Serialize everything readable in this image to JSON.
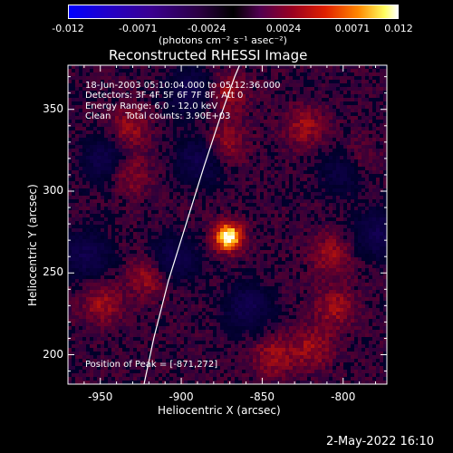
{
  "colorbar": {
    "ticks": [
      "-0.012",
      "-0.0071",
      "-0.0024",
      "0.0024",
      "0.0071",
      "0.012"
    ],
    "unit_label": "(photons cm⁻² s⁻¹ asec⁻²)"
  },
  "plot": {
    "title": "Reconstructed RHESSI Image",
    "xlabel": "Heliocentric X (arcsec)",
    "ylabel": "Heliocentric Y (arcsec)",
    "x_ticks": [
      "-950",
      "-900",
      "-850",
      "-800"
    ],
    "y_ticks": [
      "350",
      "300",
      "250",
      "200"
    ],
    "xlim": [
      -970,
      -773
    ],
    "ylim": [
      182,
      377
    ]
  },
  "annotations": {
    "time_range": "18-Jun-2003 05:10:04.000 to 05:12:36.000",
    "detectors": "Detectors: 3F 4F 5F 6F 7F 8F, Att 0",
    "energy": "Energy Range: 6.0 - 12.0 keV",
    "clean": "Clean     Total counts: 3.90E+03",
    "peak": "Position of Peak = [-871,272]"
  },
  "footer": {
    "date": "2-May-2022 16:10"
  },
  "colors": {
    "background": "#000000",
    "axes": "#ffffff"
  },
  "limb_curve": [
    [
      -923,
      182
    ],
    [
      -917,
      210
    ],
    [
      -908,
      245
    ],
    [
      -897,
      280
    ],
    [
      -886,
      315
    ],
    [
      -876,
      345
    ],
    [
      -867,
      370
    ],
    [
      -864,
      377
    ]
  ],
  "emission": {
    "peak": [
      -871,
      272
    ],
    "bright_patches": [
      [
        -934,
        312
      ],
      [
        -933,
        340
      ],
      [
        -874,
        330
      ],
      [
        -873,
        361
      ],
      [
        -808,
        262
      ],
      [
        -806,
        230
      ],
      [
        -820,
        205
      ],
      [
        -844,
        200
      ],
      [
        -921,
        248
      ],
      [
        -950,
        232
      ],
      [
        -825,
        340
      ],
      [
        -794,
        320
      ]
    ],
    "dark_patches": [
      [
        -948,
        320
      ],
      [
        -905,
        260
      ],
      [
        -860,
        230
      ],
      [
        -890,
        320
      ],
      [
        -780,
        275
      ],
      [
        -800,
        315
      ],
      [
        -960,
        262
      ],
      [
        -896,
        362
      ]
    ]
  }
}
